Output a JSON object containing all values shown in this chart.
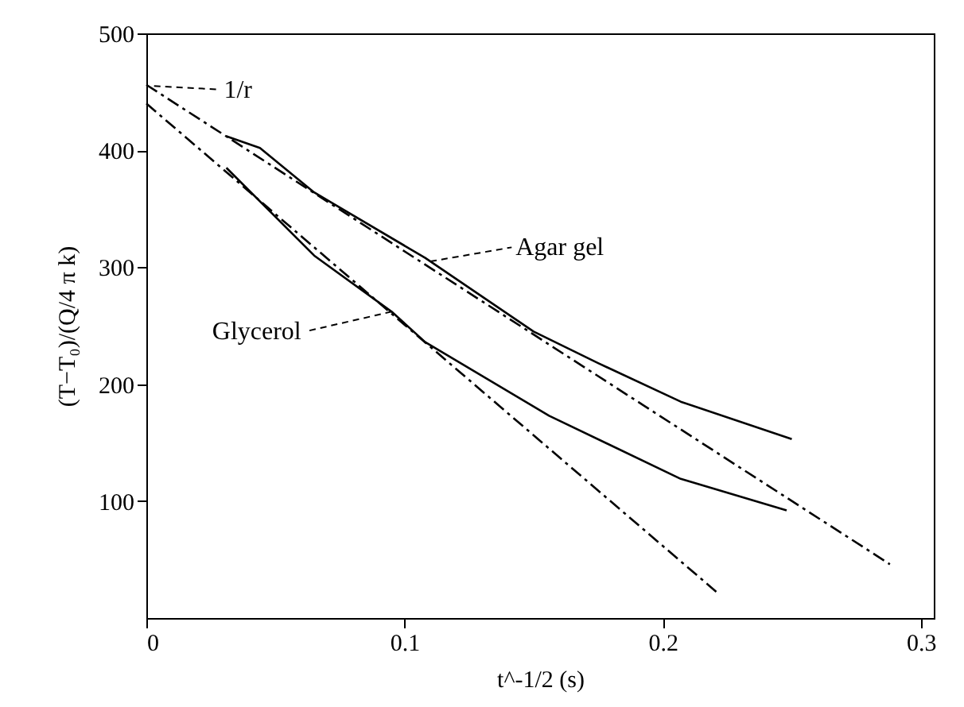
{
  "chart_data": {
    "type": "line",
    "xlabel": "t^-1/2 (s)",
    "ylabel": "(T−T₀)/(Q/4 π k)",
    "xlim": [
      0,
      0.305
    ],
    "ylim": [
      0,
      500
    ],
    "xticks": [
      0,
      0.1,
      0.2,
      0.3
    ],
    "yticks": [
      100,
      200,
      300,
      400,
      500
    ],
    "grid": false,
    "marker": "none",
    "series": [
      {
        "color": "#000000",
        "line_style": "solid",
        "x": [
          0.031,
          0.044,
          0.065,
          0.108,
          0.15,
          0.175,
          0.207,
          0.25
        ],
        "values": [
          412,
          402,
          364,
          308,
          245,
          218,
          185,
          153
        ]
      },
      {
        "color": "#000000",
        "line_style": "solid",
        "x": [
          0.031,
          0.065,
          0.095,
          0.108,
          0.156,
          0.207,
          0.248
        ],
        "values": [
          385,
          310,
          262,
          236,
          173,
          119,
          92
        ]
      },
      {
        "color": "#000000",
        "line_style": "dashed",
        "x": [
          0,
          0.288
        ],
        "values": [
          456,
          46
        ]
      },
      {
        "color": "#000000",
        "line_style": "dashed",
        "x": [
          0,
          0.221
        ],
        "values": [
          440,
          22
        ]
      }
    ],
    "annotations": [
      {
        "text": "Agar gel",
        "x": 0.11,
        "y": 305
      },
      {
        "text": "Glycerol",
        "x": 0.095,
        "y": 262
      },
      {
        "text": "1/r",
        "x": 0.003,
        "y": 455
      }
    ]
  }
}
